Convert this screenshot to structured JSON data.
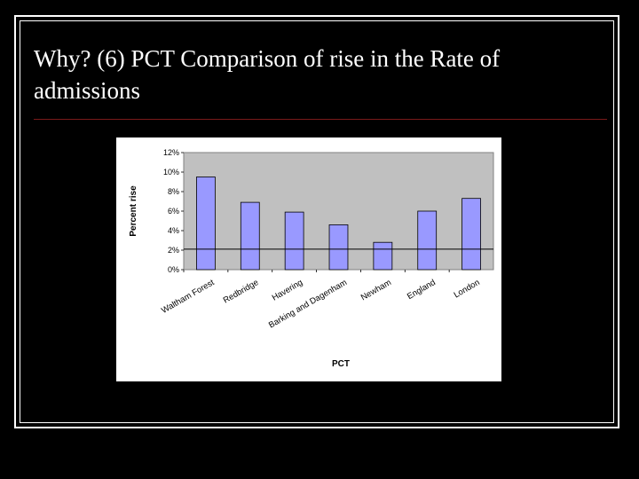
{
  "slide": {
    "title": "Why? (6) PCT Comparison of rise in the Rate of admissions",
    "colors": {
      "background": "#000000",
      "text": "#ffffff",
      "rule": "#7a1a1a"
    }
  },
  "chart_data": {
    "type": "bar",
    "categories": [
      "Waltham Forest",
      "Redbridge",
      "Havering",
      "Barking and Dagenham",
      "Newham",
      "England",
      "London"
    ],
    "values": [
      9.5,
      6.9,
      5.9,
      4.6,
      2.8,
      6.0,
      7.3
    ],
    "xlabel": "PCT",
    "ylabel": "Percent rise",
    "ylim": [
      0,
      12
    ],
    "yticks": [
      "0%",
      "2%",
      "4%",
      "6%",
      "8%",
      "10%",
      "12%"
    ],
    "reference_line": 2.1,
    "grid": false,
    "legend": "none",
    "colors": {
      "bar": "#9999ff",
      "plot_area": "#c0c0c0",
      "bar_outline": "#000000"
    }
  }
}
